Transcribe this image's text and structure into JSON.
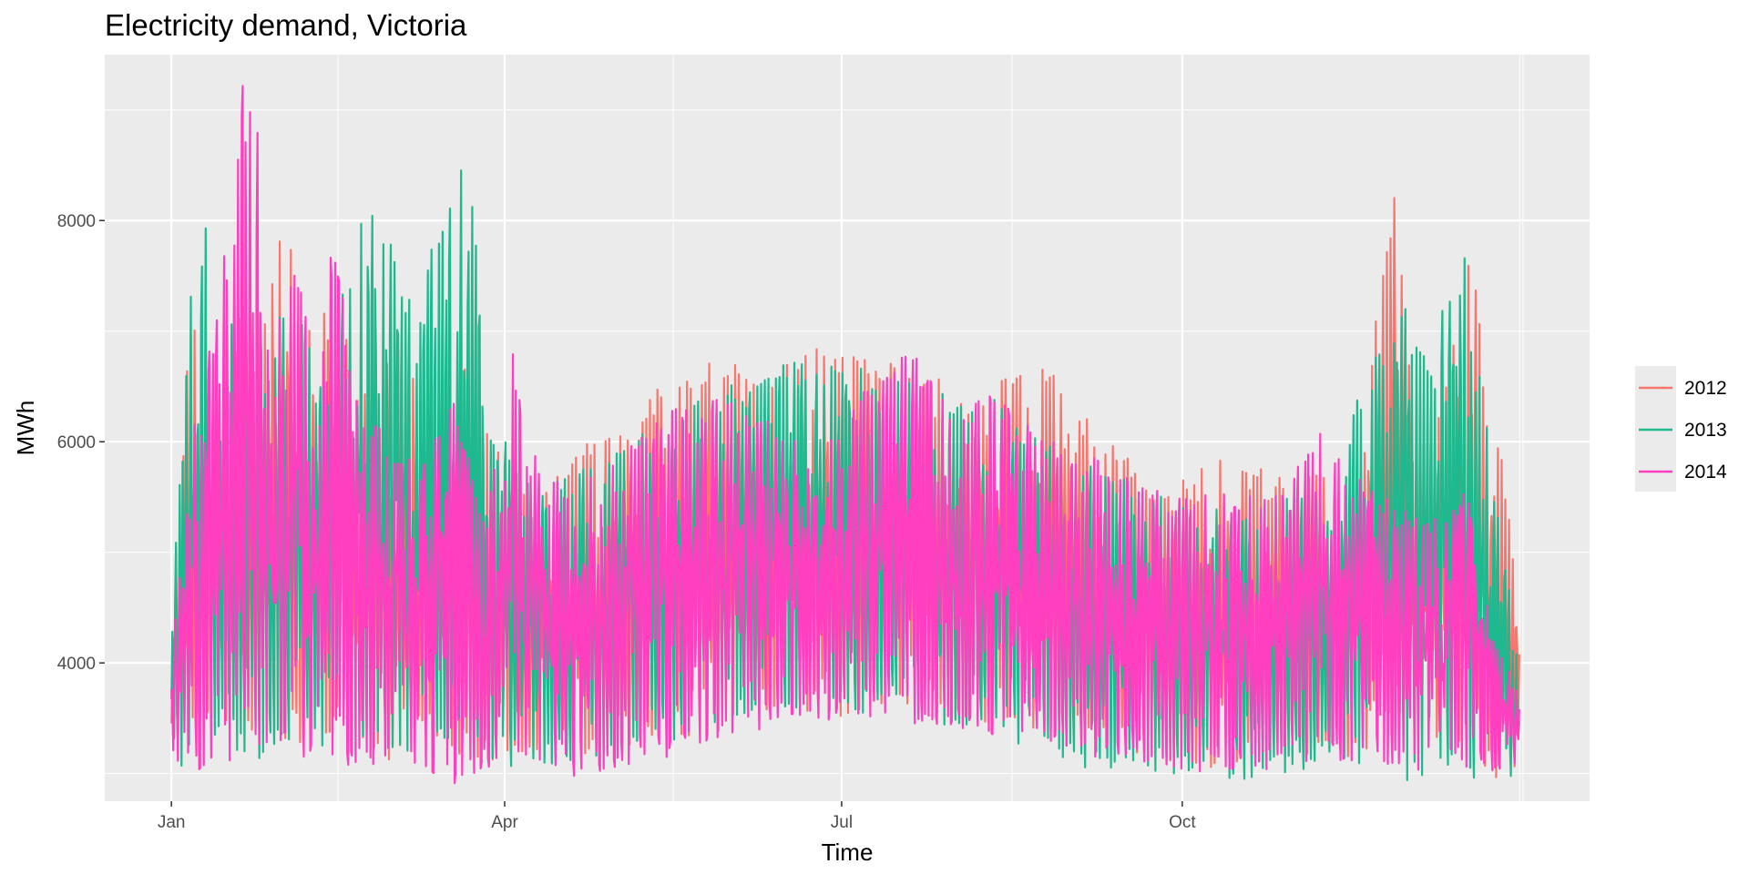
{
  "chart_data": {
    "type": "line",
    "title": "Electricity demand, Victoria",
    "xlabel": "Time",
    "ylabel": "MWh",
    "x_ticks": [
      "Jan",
      "Apr",
      "Jul",
      "Oct"
    ],
    "x_tick_days": [
      0,
      90,
      181,
      273
    ],
    "y_ticks": [
      4000,
      6000,
      8000
    ],
    "ylim": [
      2750,
      9500
    ],
    "xlim_days": [
      -18,
      383
    ],
    "grid": true,
    "legend_position": "right",
    "x_unit": "day of year (0 = 1 Jan)",
    "series": [
      {
        "name": "2012",
        "color": "#F8766D",
        "days": [
          0,
          5,
          11,
          21,
          27,
          32,
          36,
          41,
          46,
          49,
          59,
          64,
          71,
          74,
          79,
          91,
          103,
          114,
          125,
          132,
          144,
          155,
          159,
          168,
          179,
          188,
          199,
          209,
          219,
          230,
          239,
          250,
          260,
          267,
          281,
          292,
          300,
          311,
          320,
          330,
          335,
          340,
          351,
          357,
          364
        ],
        "peaks": [
          4400,
          7350,
          5800,
          6000,
          7650,
          8080,
          6900,
          7400,
          7300,
          6550,
          6950,
          6700,
          6600,
          6000,
          6850,
          5700,
          5650,
          6050,
          6200,
          6550,
          6700,
          6800,
          6400,
          6900,
          6850,
          6750,
          6750,
          6550,
          6400,
          6780,
          6600,
          6100,
          5800,
          5600,
          5820,
          5900,
          5700,
          5800,
          5600,
          8450,
          6700,
          6100,
          7750,
          6450,
          4550
        ],
        "troughs": [
          3000,
          3300,
          3500,
          3350,
          3300,
          3250,
          3200,
          3300,
          3200,
          3250,
          3100,
          3250,
          3300,
          3200,
          3150,
          3100,
          3050,
          3150,
          3250,
          3300,
          3350,
          3450,
          3500,
          3550,
          3500,
          3550,
          3550,
          3500,
          3450,
          3400,
          3350,
          3300,
          3200,
          3100,
          3050,
          3050,
          3100,
          3150,
          3150,
          3250,
          3150,
          3100,
          3100,
          2950,
          3050
        ]
      },
      {
        "name": "2013",
        "color": "#1EB98E",
        "days": [
          0,
          4,
          8,
          14,
          24,
          32,
          42,
          50,
          60,
          67,
          70,
          74,
          80,
          85,
          95,
          110,
          125,
          140,
          155,
          170,
          185,
          195,
          205,
          220,
          235,
          245,
          255,
          270,
          280,
          295,
          305,
          315,
          320,
          330,
          335,
          340,
          348,
          355,
          364
        ],
        "peaks": [
          4200,
          7050,
          8300,
          7250,
          7300,
          7400,
          6400,
          8400,
          7800,
          7050,
          8120,
          8000,
          8900,
          6550,
          5650,
          5800,
          6100,
          6350,
          6600,
          6750,
          6700,
          6600,
          6500,
          6450,
          6050,
          5900,
          5700,
          5500,
          5450,
          5300,
          5600,
          5400,
          6400,
          7150,
          7350,
          6600,
          8150,
          6200,
          4000
        ],
        "troughs": [
          3100,
          3050,
          3300,
          3200,
          3100,
          3200,
          3150,
          3100,
          3150,
          3200,
          3150,
          3200,
          3150,
          3000,
          3050,
          3100,
          3200,
          3300,
          3450,
          3500,
          3550,
          3500,
          3350,
          3300,
          3250,
          3050,
          3050,
          3000,
          2950,
          2950,
          3000,
          3000,
          3100,
          3000,
          2900,
          3000,
          3000,
          2900,
          3000
        ]
      },
      {
        "name": "2014",
        "color": "#FF3FBF",
        "days": [
          0,
          7,
          13,
          16,
          18,
          20,
          24,
          28,
          33,
          38,
          43,
          50,
          55,
          60,
          68,
          76,
          85,
          92,
          100,
          110,
          120,
          135,
          150,
          165,
          175,
          180,
          190,
          200,
          210,
          222,
          235,
          245,
          260,
          270,
          280,
          290,
          300,
          310,
          320,
          332,
          340,
          350,
          357,
          364
        ],
        "peaks": [
          4200,
          6400,
          7200,
          9100,
          9350,
          9300,
          9200,
          7300,
          7800,
          6800,
          7850,
          7000,
          6300,
          5900,
          5800,
          6500,
          5300,
          6850,
          5600,
          5700,
          5950,
          6300,
          6400,
          6200,
          6100,
          6150,
          6600,
          6850,
          6300,
          6450,
          6050,
          5950,
          5650,
          5500,
          5550,
          5500,
          5600,
          6200,
          5700,
          5400,
          5300,
          5600,
          4300,
          3700
        ],
        "troughs": [
          3000,
          3000,
          2950,
          3100,
          3300,
          3250,
          3100,
          3050,
          3100,
          3150,
          3100,
          3050,
          3000,
          3050,
          3000,
          2850,
          3050,
          3000,
          3000,
          2950,
          3050,
          3150,
          3300,
          3450,
          3450,
          3500,
          3500,
          3450,
          3400,
          3350,
          3300,
          3150,
          3100,
          3050,
          3000,
          3000,
          3050,
          3100,
          3100,
          3050,
          3000,
          3050,
          3000,
          3100
        ]
      }
    ]
  }
}
